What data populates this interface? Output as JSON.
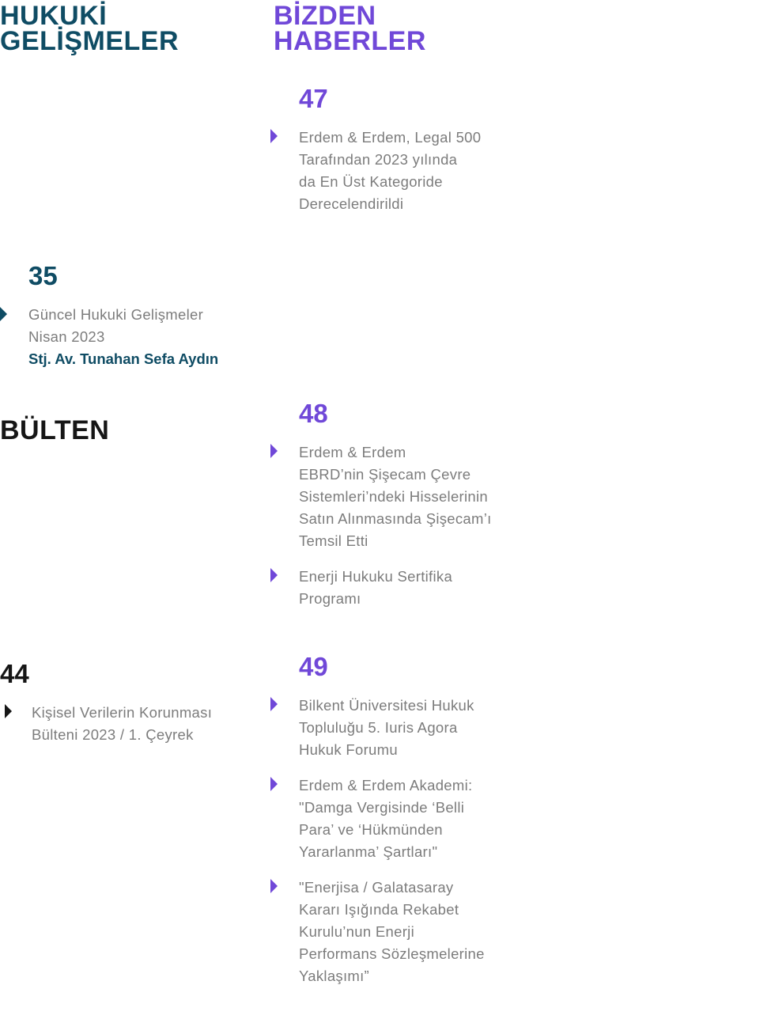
{
  "colors": {
    "teal": "#0f4c64",
    "purple": "#7048d8",
    "text_gray": "#7c7c7c",
    "dark": "#161616"
  },
  "left": {
    "heading": "HUKUKİ\nGELİŞMELER",
    "heading_line1": "HUKUKİ",
    "heading_line2": "GELİŞMELER",
    "entry35": {
      "page": "35",
      "title": "Güncel Hukuki Gelişmeler\nNisan 2023",
      "author": "Stj. Av. Tunahan Sefa Aydın"
    },
    "bulten_heading": "BÜLTEN",
    "entry44": {
      "page": "44",
      "title": "Kişisel Verilerin Korunması\nBülteni 2023 / 1. Çeyrek"
    }
  },
  "right": {
    "heading_line1": "BİZDEN",
    "heading_line2": "HABERLER",
    "page47": {
      "page": "47",
      "items": [
        "Erdem & Erdem, Legal 500\nTarafından 2023 yılında\nda En Üst Kategoride\nDerecelendirildi"
      ]
    },
    "page48": {
      "page": "48",
      "items": [
        "Erdem & Erdem\nEBRD’nin Şişecam Çevre\nSistemleri’ndeki Hisselerinin\nSatın Alınmasında Şişecam’ı\nTemsil Etti",
        "Enerji Hukuku Sertifika\nProgramı"
      ]
    },
    "page49": {
      "page": "49",
      "items": [
        "Bilkent Üniversitesi Hukuk\nTopluluğu 5. Iuris Agora\nHukuk Forumu",
        "Erdem & Erdem Akademi:\n\"Damga Vergisinde ‘Belli\nPara’ ve ‘Hükmünden\nYararlanma’ Şartları\"",
        "\"Enerjisa / Galatasaray\nKararı Işığında Rekabet\nKurulu’nun Enerji\nPerformans Sözleşmelerine\nYaklaşımı”"
      ]
    }
  }
}
